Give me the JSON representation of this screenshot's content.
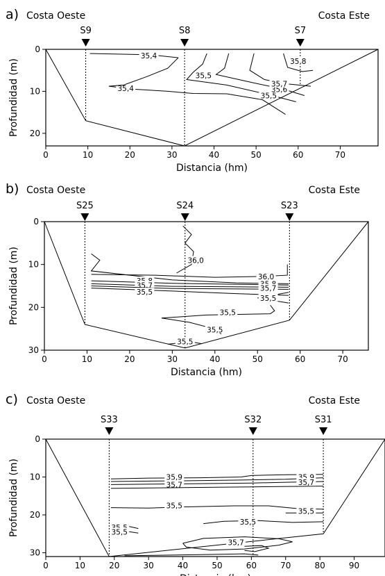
{
  "chart_data": [
    {
      "type": "contour",
      "panel_label": "a)",
      "left_title": "Costa Oeste",
      "right_title": "Costa Este",
      "xlabel": "Distancia (hm)",
      "ylabel": "Profundidad (m)",
      "xlim": [
        0,
        79
      ],
      "ylim": [
        23,
        0
      ],
      "xticks": [
        0,
        10,
        20,
        30,
        40,
        50,
        60,
        70
      ],
      "yticks": [
        0,
        10,
        20
      ],
      "stations": [
        {
          "name": "S9",
          "x": 9.5
        },
        {
          "name": "S8",
          "x": 33
        },
        {
          "name": "S7",
          "x": 60.5
        }
      ],
      "bottom_profile": [
        [
          0,
          0
        ],
        [
          9.5,
          17
        ],
        [
          33,
          23
        ],
        [
          79,
          0
        ]
      ],
      "station_casts": [
        [
          9.5,
          17
        ],
        [
          33,
          23
        ],
        [
          60.5,
          8.5
        ]
      ],
      "contours": [
        {
          "label": "35,4",
          "label_at": [
            24.5,
            1.5
          ],
          "points": [
            [
              10.5,
              1
            ],
            [
              25,
              1.3
            ],
            [
              31.5,
              2
            ]
          ]
        },
        {
          "label": "35,4",
          "label_at": [
            19,
            9.3
          ],
          "points": [
            [
              15,
              8.8
            ],
            [
              21,
              9.5
            ],
            [
              29,
              10
            ],
            [
              35,
              10.5
            ],
            [
              43,
              10.6
            ],
            [
              51.5,
              12
            ],
            [
              57,
              15.5
            ]
          ]
        },
        {
          "label": "35,5",
          "label_at": [
            37.5,
            6.2
          ],
          "points": [
            [
              31.5,
              2
            ],
            [
              29,
              4.5
            ],
            [
              24,
              6.5
            ],
            [
              18.5,
              8.5
            ],
            [
              15,
              8.8
            ]
          ]
        },
        {
          "label": "35,5",
          "label_at": [
            53,
            11
          ],
          "points": [
            [
              38.3,
              1
            ],
            [
              37.3,
              3.5
            ],
            [
              35,
              5.5
            ],
            [
              33.5,
              7.2
            ],
            [
              43,
              8.5
            ],
            [
              53,
              10.8
            ],
            [
              59.5,
              12.5
            ]
          ]
        },
        {
          "label": "35,6",
          "label_at": [
            55.5,
            9.5
          ],
          "points": [
            [
              43.5,
              1
            ],
            [
              42.5,
              4.5
            ],
            [
              40.5,
              6
            ],
            [
              49.5,
              8
            ],
            [
              56.5,
              9.5
            ],
            [
              61.5,
              11
            ]
          ]
        },
        {
          "label": "35,7",
          "label_at": [
            55.5,
            8.2
          ],
          "points": [
            [
              49.5,
              1
            ],
            [
              48.5,
              5
            ],
            [
              52,
              7.2
            ],
            [
              57,
              8.2
            ],
            [
              63,
              8.8
            ]
          ]
        },
        {
          "label": "35,8",
          "label_at": [
            60,
            2.8
          ],
          "points": [
            [
              56.5,
              1
            ],
            [
              57.5,
              4.3
            ],
            [
              61,
              5.3
            ],
            [
              63.5,
              5
            ]
          ]
        }
      ],
      "contour_labels": [
        "35,4",
        "35,5",
        "35,5",
        "35,6",
        "35,7",
        "35,8",
        "35,4"
      ]
    },
    {
      "type": "contour",
      "panel_label": "b)",
      "left_title": "Costa Oeste",
      "right_title": "Costa Este",
      "xlabel": "Distancia (hm)",
      "ylabel": "Profundidad (m)",
      "xlim": [
        0,
        76
      ],
      "ylim": [
        30,
        0
      ],
      "xticks": [
        0,
        10,
        20,
        30,
        40,
        50,
        60,
        70
      ],
      "yticks": [
        0,
        10,
        20,
        30
      ],
      "stations": [
        {
          "name": "S25",
          "x": 9.5
        },
        {
          "name": "S24",
          "x": 33
        },
        {
          "name": "S23",
          "x": 57.5
        }
      ],
      "bottom_profile": [
        [
          0,
          0
        ],
        [
          9.5,
          24
        ],
        [
          33,
          29.5
        ],
        [
          57.5,
          23
        ],
        [
          76,
          0
        ]
      ],
      "station_casts": [
        [
          9.5,
          24
        ],
        [
          33,
          29.5
        ],
        [
          57.5,
          23
        ]
      ],
      "contours": [
        {
          "label": "36,0",
          "label_at": [
            35.5,
            9
          ],
          "points": [
            [
              32.5,
              1
            ],
            [
              34.5,
              3
            ],
            [
              33,
              5
            ],
            [
              35,
              7
            ],
            [
              34.5,
              10
            ],
            [
              31,
              12
            ]
          ]
        },
        {
          "label": "36,0",
          "label_at": [
            52,
            12.8
          ],
          "points": [
            [
              11,
              12.3
            ],
            [
              26,
              12.5
            ],
            [
              40,
              13
            ],
            [
              51,
              12.8
            ],
            [
              57,
              12.5
            ],
            [
              57,
              10
            ]
          ]
        },
        {
          "label": "35,8",
          "label_at": [
            23.5,
            13.8
          ],
          "points": [
            [
              11,
              7.5
            ],
            [
              13,
              9
            ],
            [
              11,
              11.5
            ],
            [
              30,
              13.6
            ],
            [
              45,
              14.3
            ],
            [
              57.3,
              14.5
            ]
          ]
        },
        {
          "label": "35,8",
          "label_at": [
            52.5,
            14.5
          ],
          "points": [
            [
              11,
              13.8
            ],
            [
              30,
              14.4
            ],
            [
              57.3,
              14.8
            ]
          ]
        },
        {
          "label": "35,7",
          "label_at": [
            23.5,
            14.8
          ],
          "points": [
            [
              11,
              14.5
            ],
            [
              30,
              15.1
            ],
            [
              57.3,
              15.3
            ]
          ]
        },
        {
          "label": "35,7",
          "label_at": [
            52.5,
            15.5
          ],
          "points": [
            [
              11,
              15
            ],
            [
              30,
              15.6
            ],
            [
              57.3,
              15.8
            ]
          ]
        },
        {
          "label": "35,5",
          "label_at": [
            23.5,
            16.4
          ],
          "points": [
            [
              11,
              15.5
            ],
            [
              30,
              16.2
            ],
            [
              45,
              16.8
            ],
            [
              57.3,
              17.2
            ]
          ]
        },
        {
          "label": "35,5",
          "label_at": [
            52.5,
            17.8
          ],
          "points": [
            [
              57.3,
              16.5
            ],
            [
              50,
              17.8
            ],
            [
              57.3,
              19
            ]
          ]
        },
        {
          "label": "35,5",
          "label_at": [
            43,
            21.2
          ],
          "points": [
            [
              27.5,
              22.5
            ],
            [
              38,
              21.8
            ],
            [
              53,
              21.5
            ],
            [
              54,
              20.8
            ],
            [
              53,
              19.5
            ]
          ]
        },
        {
          "label": "35,5",
          "label_at": [
            40,
            25.2
          ],
          "points": [
            [
              27.5,
              22.5
            ],
            [
              34,
              23.5
            ],
            [
              39,
              24.8
            ],
            [
              41.5,
              26.2
            ]
          ]
        },
        {
          "label": "35,5",
          "label_at": [
            33,
            28
          ],
          "points": [
            [
              29,
              28.6
            ],
            [
              34,
              28
            ],
            [
              37,
              28.5
            ]
          ]
        }
      ],
      "contour_labels": [
        "36,0",
        "36,0",
        "35,8",
        "35,8",
        "35,7",
        "35,7",
        "35,5",
        "35,5",
        "35,5",
        "35,5",
        "35,5"
      ]
    },
    {
      "type": "contour",
      "panel_label": "c)",
      "left_title": "Costa Oeste",
      "right_title": "Costa Este",
      "xlabel": "Distancia (hm)",
      "ylabel": "Profundidad (m)",
      "xlim": [
        0,
        99
      ],
      "ylim": [
        31,
        0
      ],
      "xticks": [
        0,
        10,
        20,
        30,
        40,
        50,
        60,
        70,
        80,
        90
      ],
      "yticks": [
        0,
        10,
        20,
        30
      ],
      "stations": [
        {
          "name": "S33",
          "x": 18.5
        },
        {
          "name": "S32",
          "x": 60.5
        },
        {
          "name": "S31",
          "x": 81
        }
      ],
      "bottom_profile": [
        [
          0,
          0
        ],
        [
          18.5,
          31
        ],
        [
          81,
          25
        ],
        [
          99,
          0
        ]
      ],
      "station_casts": [
        [
          18.5,
          31
        ],
        [
          60.5,
          31
        ],
        [
          81,
          25
        ]
      ],
      "contours": [
        {
          "label": "35,9",
          "label_at": [
            37.5,
            10
          ],
          "points": [
            [
              19,
              10.5
            ],
            [
              30,
              10.3
            ],
            [
              45,
              10.2
            ],
            [
              57,
              10
            ],
            [
              60,
              9.6
            ],
            [
              70,
              9.4
            ],
            [
              81,
              9.3
            ]
          ]
        },
        {
          "label": "35,9",
          "label_at": [
            76,
            10
          ],
          "points": [
            [
              19,
              11.2
            ],
            [
              40,
              11
            ],
            [
              57,
              10.8
            ],
            [
              70,
              10.6
            ],
            [
              81,
              10.2
            ]
          ]
        },
        {
          "label": "35,7",
          "label_at": [
            37.5,
            12
          ],
          "points": [
            [
              19,
              12
            ],
            [
              40,
              11.8
            ],
            [
              60,
              11.6
            ],
            [
              70,
              11.4
            ],
            [
              81,
              11.2
            ]
          ]
        },
        {
          "label": "35,7",
          "label_at": [
            76,
            11.4
          ],
          "points": [
            [
              19,
              13
            ],
            [
              40,
              12.8
            ],
            [
              60,
              12.6
            ],
            [
              81,
              12.4
            ]
          ]
        },
        {
          "label": "35,5",
          "label_at": [
            37.5,
            17.5
          ],
          "points": [
            [
              19,
              18.1
            ],
            [
              30,
              18.2
            ],
            [
              40,
              17.9
            ],
            [
              55,
              17.6
            ],
            [
              65,
              17.6
            ],
            [
              73,
              18.3
            ],
            [
              81,
              18.5
            ]
          ]
        },
        {
          "label": "35,5",
          "label_at": [
            76,
            19
          ],
          "points": [
            [
              70,
              19.5
            ],
            [
              81,
              19.5
            ]
          ]
        },
        {
          "label": "35,5",
          "label_at": [
            59,
            21.8
          ],
          "points": [
            [
              46,
              22.3
            ],
            [
              52,
              21.7
            ],
            [
              62,
              21.5
            ],
            [
              72,
              22
            ],
            [
              81,
              21.8
            ]
          ]
        },
        {
          "label": "35,5",
          "label_at": [
            21.5,
            23.3
          ],
          "points": [
            [
              19,
              22.3
            ],
            [
              24,
              23
            ],
            [
              27,
              23.6
            ]
          ]
        },
        {
          "label": "35,5",
          "label_at": [
            21.5,
            24.5
          ],
          "points": [
            [
              19,
              24.6
            ],
            [
              24,
              24.4
            ],
            [
              27,
              24.8
            ]
          ]
        },
        {
          "label": "35,7",
          "label_at": [
            55.5,
            27.2
          ],
          "points": [
            [
              40,
              27.5
            ],
            [
              46,
              26.2
            ],
            [
              58,
              25.8
            ],
            [
              68,
              26.3
            ],
            [
              72,
              27.1
            ],
            [
              68,
              28
            ],
            [
              58,
              29
            ],
            [
              48,
              29.3
            ],
            [
              41,
              28.5
            ],
            [
              40,
              27.5
            ]
          ]
        },
        {
          "label": "",
          "label_at": [
            0,
            0
          ],
          "points": [
            [
              58,
              28.3
            ],
            [
              63,
              28.1
            ],
            [
              65,
              28.8
            ],
            [
              61,
              29.7
            ],
            [
              58,
              29.4
            ]
          ]
        },
        {
          "label": "",
          "label_at": [
            0,
            0
          ],
          "points": [
            [
              23,
              30.8
            ],
            [
              45,
              30.5
            ],
            [
              58,
              30.3
            ],
            [
              62,
              30.6
            ]
          ]
        }
      ],
      "contour_labels": [
        "35,9",
        "35,9",
        "35,7",
        "35,7",
        "35,5",
        "35,5",
        "35,5",
        "35,5",
        "35,5",
        "35,7"
      ]
    }
  ]
}
